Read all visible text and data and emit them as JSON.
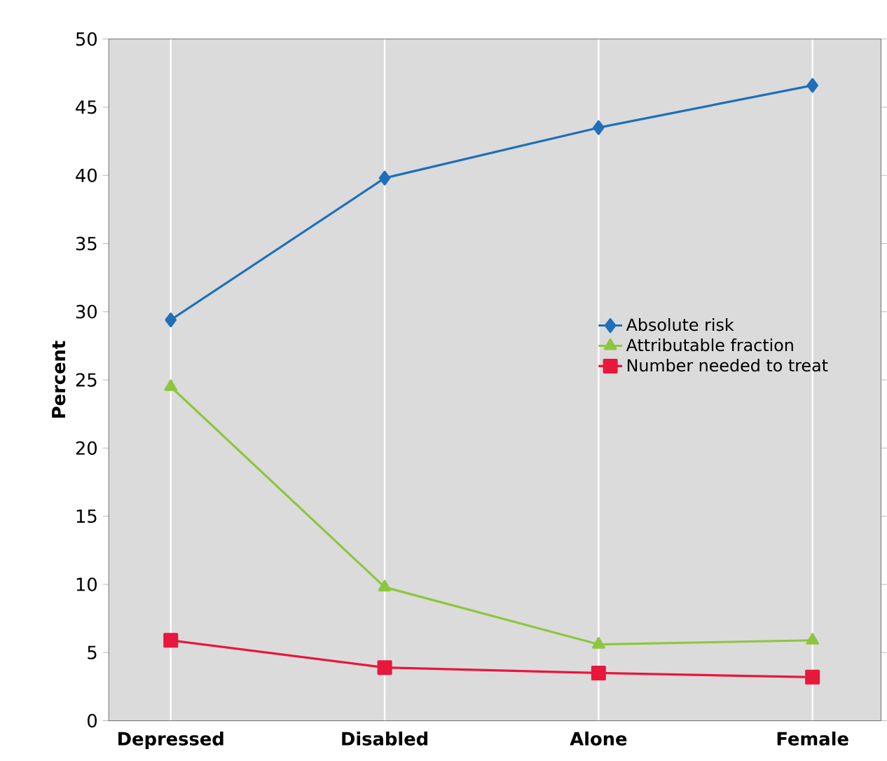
{
  "chart_data": {
    "type": "line",
    "ylabel": "Percent",
    "categories": [
      "Depressed",
      "Disabled",
      "Alone",
      "Female"
    ],
    "series": [
      {
        "name": "Absolute risk",
        "color": "#1f6fba",
        "marker": "diamond",
        "values": [
          29.4,
          39.8,
          43.5,
          46.6
        ]
      },
      {
        "name": "Attributable fraction",
        "color": "#8dc63f",
        "marker": "triangle",
        "values": [
          24.5,
          9.8,
          5.6,
          5.9
        ]
      },
      {
        "name": "Number needed to treat",
        "color": "#e8173c",
        "marker": "square",
        "values": [
          5.9,
          3.9,
          3.5,
          3.2
        ]
      }
    ],
    "ylim": [
      0,
      50
    ],
    "yticks": [
      0,
      5,
      10,
      15,
      20,
      25,
      30,
      35,
      40,
      45,
      50
    ],
    "grid": "x",
    "legend": "right",
    "line_style": "solid"
  }
}
